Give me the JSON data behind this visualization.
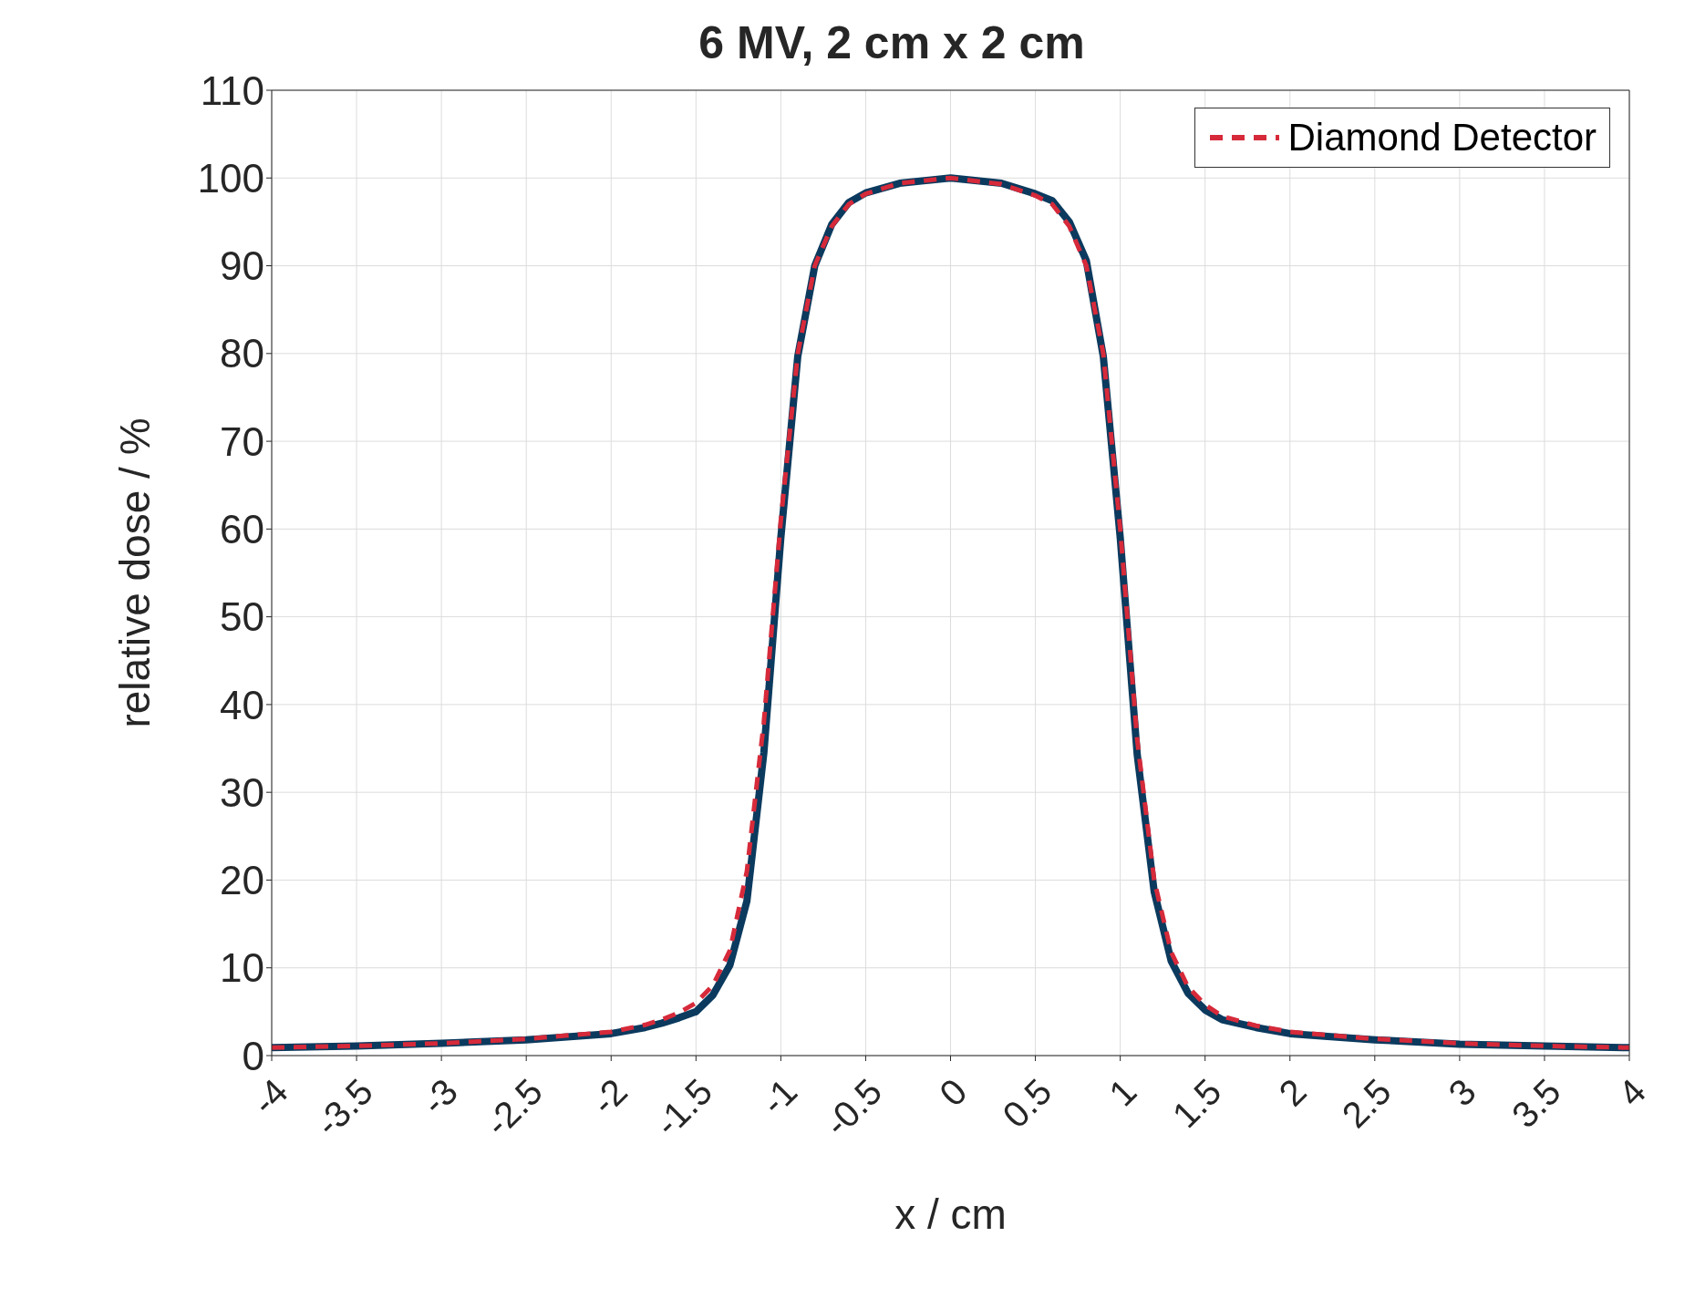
{
  "chart_data": {
    "type": "line",
    "title": "6 MV, 2 cm x 2 cm",
    "xlabel": "x / cm",
    "ylabel": "relative dose / %",
    "xlim": [
      -4,
      4
    ],
    "xticks": [
      -4,
      -3.5,
      -3,
      -2.5,
      -2,
      -1.5,
      -1,
      -0.5,
      0,
      0.5,
      1,
      1.5,
      2,
      2.5,
      3,
      3.5,
      4
    ],
    "ylim": [
      0,
      110
    ],
    "yticks": [
      0,
      10,
      20,
      30,
      40,
      50,
      60,
      70,
      80,
      90,
      100,
      110
    ],
    "grid": true,
    "legend": "top right",
    "series": [
      {
        "color": "#0b3a5e",
        "line_style": "solid",
        "x": [
          -4,
          -3.5,
          -3,
          -2.5,
          -2,
          -1.8,
          -1.7,
          -1.6,
          -1.5,
          -1.4,
          -1.3,
          -1.2,
          -1.1,
          -1.0,
          -0.9,
          -0.8,
          -0.7,
          -0.6,
          -0.5,
          -0.3,
          0,
          0.3,
          0.5,
          0.6,
          0.7,
          0.8,
          0.9,
          1.0,
          1.1,
          1.2,
          1.3,
          1.4,
          1.5,
          1.6,
          1.8,
          2,
          2.5,
          3,
          3.5,
          4
        ],
        "values": [
          0.9,
          1.1,
          1.4,
          1.8,
          2.5,
          3.2,
          3.7,
          4.3,
          5,
          6.9,
          10.3,
          17.6,
          34.5,
          59,
          79.7,
          90,
          94.7,
          97.2,
          98.3,
          99.4,
          100,
          99.4,
          98.2,
          97.4,
          95,
          90.6,
          79.7,
          59,
          34.3,
          18.7,
          10.8,
          7.1,
          5.2,
          4.1,
          3.2,
          2.5,
          1.8,
          1.3,
          1.1,
          0.9
        ]
      },
      {
        "name": "Diamond Detector",
        "color": "#d62a3a",
        "line_style": "dashed",
        "x": [
          -4,
          -3.5,
          -3,
          -2.5,
          -2,
          -1.8,
          -1.7,
          -1.6,
          -1.5,
          -1.4,
          -1.3,
          -1.2,
          -1.1,
          -1.0,
          -0.9,
          -0.8,
          -0.7,
          -0.6,
          -0.5,
          -0.3,
          0,
          0.3,
          0.5,
          0.6,
          0.7,
          0.8,
          0.9,
          1.0,
          1.1,
          1.2,
          1.3,
          1.4,
          1.5,
          1.6,
          1.8,
          2,
          2.5,
          3,
          3.5,
          4
        ],
        "values": [
          0.9,
          1.1,
          1.4,
          1.9,
          2.7,
          3.5,
          4.1,
          4.9,
          6,
          8,
          12,
          21,
          38,
          61,
          80,
          90,
          94.5,
          97,
          98.2,
          99.4,
          100,
          99.3,
          98,
          97,
          94.5,
          90,
          80,
          60,
          36,
          20,
          11.8,
          7.8,
          5.8,
          4.5,
          3.4,
          2.7,
          1.9,
          1.4,
          1.1,
          0.9
        ]
      }
    ]
  }
}
